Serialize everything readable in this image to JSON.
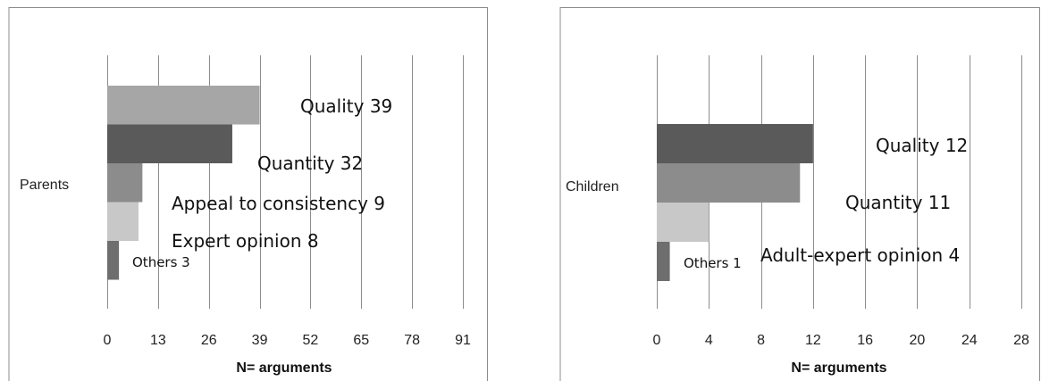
{
  "chart_data": [
    {
      "type": "bar",
      "orientation": "horizontal",
      "category": "Parents",
      "xlabel": "N= arguments",
      "xlim": [
        0,
        91
      ],
      "xticks": [
        "0",
        "13",
        "26",
        "39",
        "52",
        "65",
        "78",
        "91"
      ],
      "grid": true,
      "series": [
        {
          "name": "Quality",
          "value": 39,
          "label": "Quality 39",
          "color": "#a6a6a6"
        },
        {
          "name": "Quantity",
          "value": 32,
          "label": "Quantity 32",
          "color": "#5a5a5a"
        },
        {
          "name": "Appeal to consistency",
          "value": 9,
          "label": "Appeal to consistency 9",
          "color": "#8c8c8c"
        },
        {
          "name": "Expert opinion",
          "value": 8,
          "label": "Expert opinion 8",
          "color": "#c8c8c8"
        },
        {
          "name": "Others",
          "value": 3,
          "label": "Others 3",
          "color": "#6e6e6e"
        }
      ]
    },
    {
      "type": "bar",
      "orientation": "horizontal",
      "category": "Children",
      "xlabel": "N= arguments",
      "xlim": [
        0,
        28
      ],
      "xticks": [
        "0",
        "4",
        "8",
        "12",
        "16",
        "20",
        "24",
        "28"
      ],
      "grid": true,
      "series": [
        {
          "name": "Quality",
          "value": 12,
          "label": "Quality 12",
          "color": "#5a5a5a"
        },
        {
          "name": "Quantity",
          "value": 11,
          "label": "Quantity 11",
          "color": "#8c8c8c"
        },
        {
          "name": "Adult-expert opinion",
          "value": 4,
          "label": "Adult-expert opinion 4",
          "color": "#c8c8c8"
        },
        {
          "name": "Others",
          "value": 1,
          "label": "Others 1",
          "color": "#6e6e6e"
        }
      ]
    }
  ]
}
